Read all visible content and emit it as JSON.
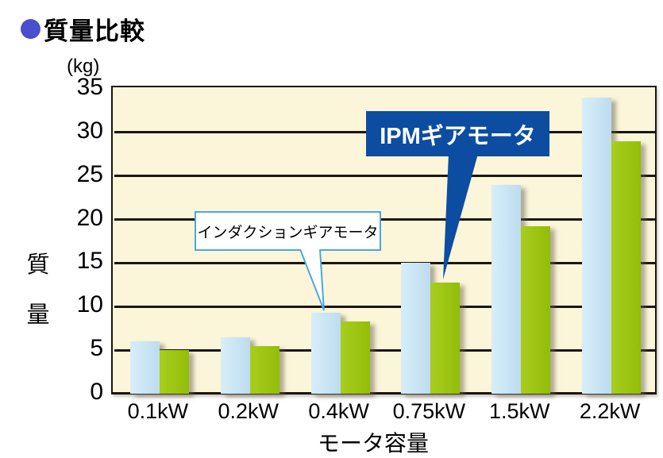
{
  "page": {
    "title": "質量比較",
    "bullet_icon": "blue-circle-bullet"
  },
  "chart_data": {
    "type": "bar",
    "title": "質量比較",
    "categories": [
      "0.1kW",
      "0.2kW",
      "0.4kW",
      "0.75kW",
      "1.5kW",
      "2.2kW"
    ],
    "series": [
      {
        "name": "インダクションギアモータ",
        "color": "#d8eef9",
        "color2": "#bddcef",
        "values": [
          6.0,
          6.5,
          9.3,
          15.0,
          24.0,
          34.0
        ]
      },
      {
        "name": "IPMギアモータ",
        "color": "#a8cd1e",
        "color2": "#93bd08",
        "values": [
          5.0,
          5.5,
          8.3,
          12.8,
          19.2,
          29.0
        ]
      }
    ],
    "ylabel": "質量",
    "ylabel_chars": {
      "c0": "質",
      "c1": "量"
    },
    "y_unit": "(kg)",
    "xlabel": "モータ容量",
    "ylim": [
      0,
      35
    ],
    "yticks": [
      35,
      30,
      25,
      20,
      15,
      10,
      5,
      0
    ],
    "grid": "horizontal-black-lines",
    "legend_position": "callouts-inside-plot",
    "plot_bg": "#fbf6da",
    "grid_color": "#1b150a"
  },
  "annotations": {
    "induction_callout": {
      "label": "インダクションギアモータ",
      "style": "white-box-lightblue-border",
      "points_to": "0.4kW induction bar"
    },
    "ipm_callout": {
      "label": "IPMギアモータ",
      "style": "navy-box-white-text",
      "points_to": "0.75kW IPM bar",
      "color": "#0c4da2"
    }
  },
  "colors": {
    "title_bullet": "#4a4fce",
    "callout_border": "#4aa8dc",
    "navy": "#0c4da2"
  }
}
